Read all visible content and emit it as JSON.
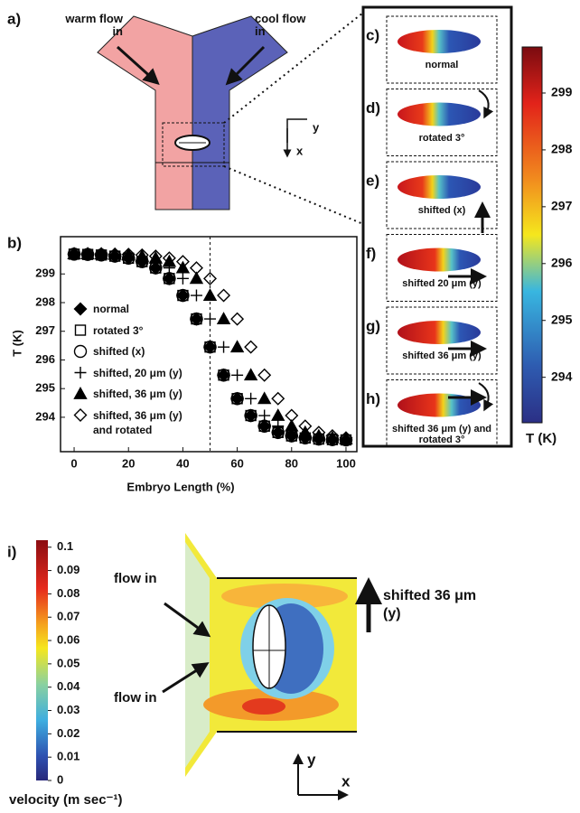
{
  "chart_data": {
    "type": "scatter",
    "panel_label": "b)",
    "x_label": "Embryo Length  (%)",
    "y_label": "T (K)",
    "x": [
      0,
      5,
      10,
      15,
      20,
      25,
      30,
      35,
      40,
      45,
      50,
      55,
      60,
      65,
      70,
      75,
      80,
      85,
      90,
      95,
      100
    ],
    "xlim": [
      -5,
      104
    ],
    "ylim": [
      292.8,
      300.3
    ],
    "xticks": [
      0,
      20,
      40,
      60,
      80,
      100
    ],
    "yticks": [
      294,
      295,
      296,
      297,
      298,
      299
    ],
    "vline": 50,
    "series": [
      {
        "name": "normal",
        "marker": "diamond-filled",
        "color": "#000000",
        "values": [
          299.69,
          299.68,
          299.66,
          299.62,
          299.55,
          299.43,
          299.21,
          298.84,
          298.25,
          297.43,
          296.45,
          295.47,
          294.65,
          294.06,
          293.69,
          293.47,
          293.35,
          293.28,
          293.24,
          293.22,
          293.21
        ]
      },
      {
        "name": "rotated 3°",
        "marker": "square-open",
        "color": "#000000",
        "values": [
          299.69,
          299.68,
          299.66,
          299.62,
          299.55,
          299.43,
          299.21,
          298.84,
          298.25,
          297.43,
          296.45,
          295.47,
          294.65,
          294.06,
          293.69,
          293.47,
          293.35,
          293.28,
          293.24,
          293.22,
          293.21
        ]
      },
      {
        "name": "shifted (x)",
        "marker": "circle-open",
        "color": "#000000",
        "values": [
          299.69,
          299.68,
          299.66,
          299.62,
          299.55,
          299.43,
          299.21,
          298.84,
          298.25,
          297.43,
          296.45,
          295.47,
          294.65,
          294.06,
          293.69,
          293.47,
          293.35,
          293.28,
          293.24,
          293.22,
          293.21
        ]
      },
      {
        "name": "shifted, 20 μm (y)",
        "marker": "plus",
        "color": "#000000",
        "values": [
          299.7,
          299.69,
          299.68,
          299.66,
          299.62,
          299.55,
          299.43,
          299.21,
          298.84,
          298.25,
          297.43,
          296.45,
          295.47,
          294.65,
          294.06,
          293.69,
          293.47,
          293.35,
          293.28,
          293.24,
          293.22
        ]
      },
      {
        "name": "shifted, 36 μm (y)",
        "marker": "triangle-filled",
        "color": "#000000",
        "values": [
          299.7,
          299.7,
          299.69,
          299.68,
          299.66,
          299.62,
          299.55,
          299.43,
          299.21,
          298.84,
          298.25,
          297.43,
          296.45,
          295.47,
          294.65,
          294.06,
          293.69,
          293.47,
          293.35,
          293.28,
          293.24
        ]
      },
      {
        "name": "shifted, 36 μm (y) and rotated",
        "marker": "diamond-open",
        "color": "#000000",
        "values": [
          299.7,
          299.7,
          299.7,
          299.69,
          299.68,
          299.66,
          299.62,
          299.55,
          299.43,
          299.21,
          298.84,
          298.25,
          297.43,
          296.45,
          295.47,
          294.65,
          294.06,
          293.69,
          293.47,
          293.35,
          293.28
        ]
      }
    ]
  },
  "panel_a": {
    "label": "a)",
    "warm": "warm flow in",
    "cool": "cool flow in",
    "axis_y": "y",
    "axis_x": "x"
  },
  "panels_c_h": [
    {
      "label": "c)",
      "caption": "normal"
    },
    {
      "label": "d)",
      "caption": "rotated 3°"
    },
    {
      "label": "e)",
      "caption": "shifted (x)"
    },
    {
      "label": "f)",
      "caption": "shifted 20 μm (y)"
    },
    {
      "label": "g)",
      "caption": "shifted 36 μm (y)"
    },
    {
      "label": "h)",
      "caption": "shifted 36 μm (y) and rotated 3°"
    }
  ],
  "temperature_colorbar": {
    "label": "T (K)",
    "lim": [
      293.2,
      299.81
    ],
    "ticks": [
      294,
      295,
      296,
      297,
      298,
      299
    ]
  },
  "panel_i": {
    "label": "i)",
    "flow_in_top": "flow in",
    "flow_in_bottom": "flow in",
    "shift": "shifted 36 μm (y)",
    "axis_y": "y",
    "axis_x": "x",
    "colorbar": {
      "label": "velocity (m sec⁻¹)",
      "lim": [
        0,
        0.103
      ],
      "ticks": [
        0,
        0.01,
        0.02,
        0.03,
        0.04,
        0.05,
        0.06,
        0.07,
        0.08,
        0.09,
        0.1
      ]
    }
  }
}
